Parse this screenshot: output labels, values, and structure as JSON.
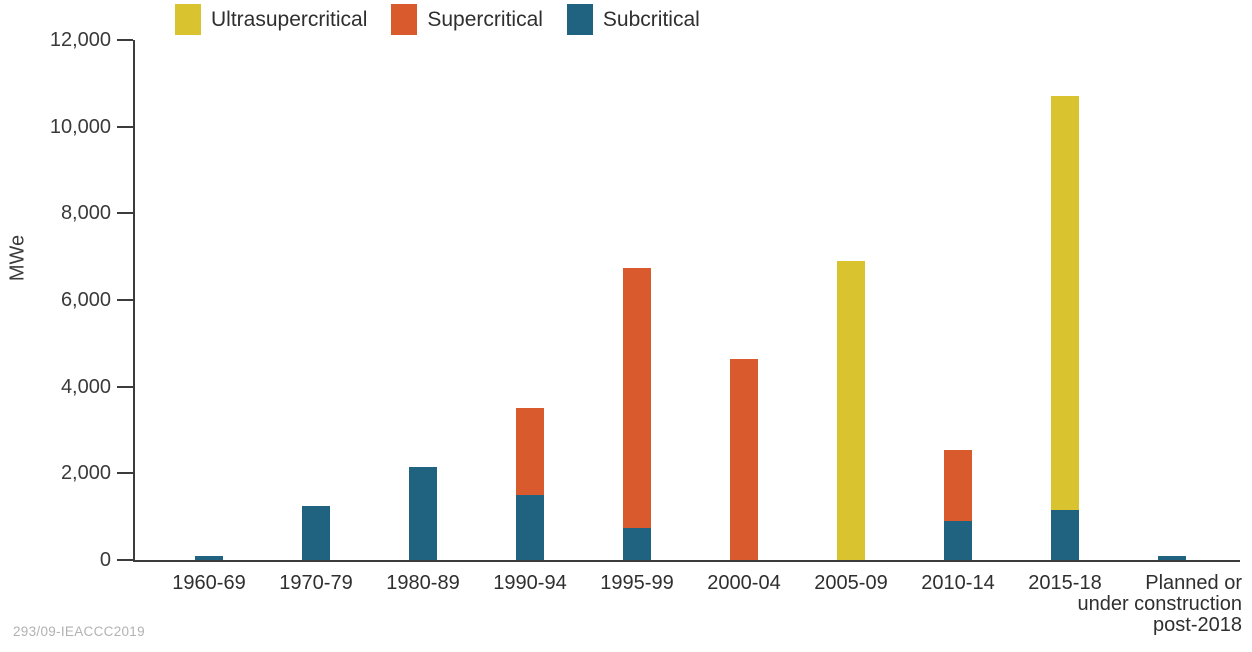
{
  "chart_data": {
    "type": "bar",
    "stacked": true,
    "title": "",
    "xlabel": "",
    "ylabel": "MWe",
    "ylim": [
      0,
      12000
    ],
    "ytick_interval": 2000,
    "ytick_labels": [
      "0",
      "2,000",
      "4,000",
      "6,000",
      "8,000",
      "10,000",
      "12,000"
    ],
    "grid": false,
    "legend_position": "top",
    "categories": [
      "1960-69",
      "1970-79",
      "1980-89",
      "1990-94",
      "1995-99",
      "2000-04",
      "2005-09",
      "2010-14",
      "2015-18",
      "Planned or\nunder construction\npost-2018"
    ],
    "series": [
      {
        "name": "Subcritical",
        "color": "#1f6380",
        "values": [
          100,
          1250,
          2150,
          1500,
          750,
          0,
          0,
          900,
          1150,
          100
        ]
      },
      {
        "name": "Supercritical",
        "color": "#d95a2c",
        "values": [
          0,
          0,
          0,
          2000,
          6000,
          4650,
          0,
          1650,
          0,
          0
        ]
      },
      {
        "name": "Ultrasupercritical",
        "color": "#d9c32e",
        "values": [
          0,
          0,
          0,
          0,
          0,
          0,
          6900,
          0,
          9550,
          0
        ]
      }
    ]
  },
  "legend": {
    "items": [
      {
        "label": "Ultrasupercritical",
        "color": "#d9c32e"
      },
      {
        "label": "Supercritical",
        "color": "#d95a2c"
      },
      {
        "label": "Subcritical",
        "color": "#1f6380"
      }
    ]
  },
  "footer": {
    "credit": "293/09-IEACCC2019"
  },
  "colors": {
    "axis": "#3c3c3c",
    "text": "#3a3a3a",
    "credit": "#b2b2b2",
    "background": "#ffffff"
  }
}
